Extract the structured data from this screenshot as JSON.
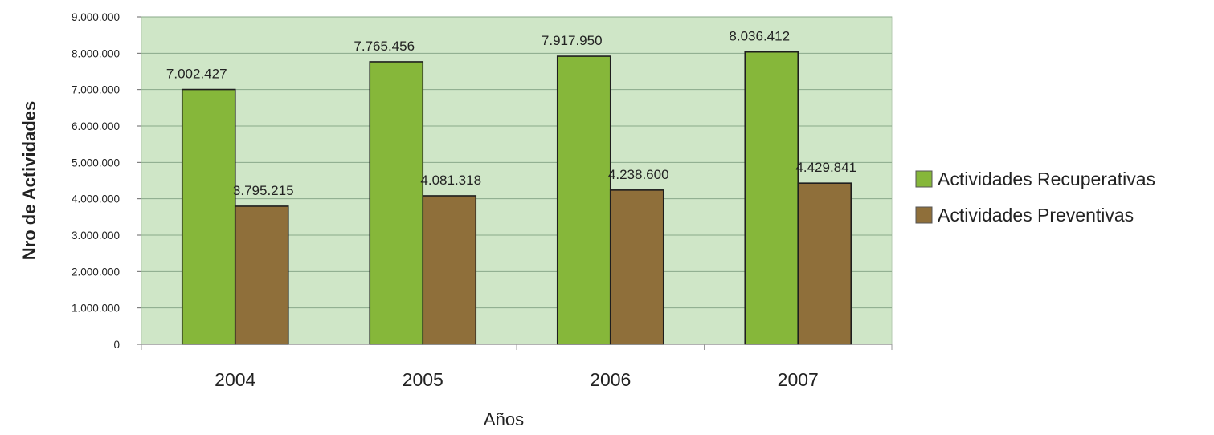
{
  "colors": {
    "plot_background": "#cfe6c7",
    "gridline": "#8aa98a",
    "series_recuperativas": "#86b73a",
    "series_preventivas": "#8f6f3a",
    "bar_stroke": "#1e1e1e",
    "text": "#222222"
  },
  "chart_data": {
    "type": "bar",
    "title": "",
    "xlabel": "Años",
    "ylabel": "Nro de Actividades",
    "ylim": [
      0,
      9000000
    ],
    "yticks": [
      0,
      1000000,
      2000000,
      3000000,
      4000000,
      5000000,
      6000000,
      7000000,
      8000000,
      9000000
    ],
    "ytick_labels": [
      "0",
      "1.000.000",
      "2.000.000",
      "3.000.000",
      "4.000.000",
      "5.000.000",
      "6.000.000",
      "7.000.000",
      "8.000.000",
      "9.000.000"
    ],
    "categories": [
      "2004",
      "2005",
      "2006",
      "2007"
    ],
    "grid": true,
    "legend_position": "right",
    "series": [
      {
        "name": "Actividades Recuperativas",
        "values": [
          7002427,
          7765456,
          7917950,
          8036412
        ],
        "labels": [
          "7.002.427",
          "7.765.456",
          "7.917.950",
          "8.036.412"
        ]
      },
      {
        "name": "Actividades Preventivas",
        "values": [
          3795215,
          4081318,
          4238600,
          4429841
        ],
        "labels": [
          "3.795.215",
          "4.081.318",
          "4.238.600",
          "4.429.841"
        ]
      }
    ]
  }
}
